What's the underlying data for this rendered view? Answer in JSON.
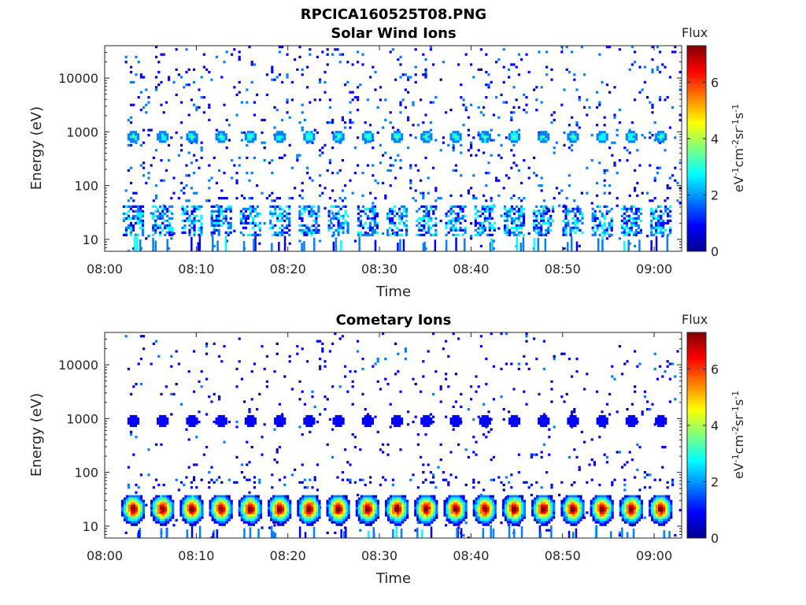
{
  "figure": {
    "filename": "RPCICA160525T08.PNG"
  },
  "colormap": [
    "#00008f",
    "#0000ff",
    "#007fff",
    "#00ffff",
    "#7fff7f",
    "#ffff00",
    "#ff7f00",
    "#ff0000",
    "#7f0000"
  ],
  "chart_data": [
    {
      "type": "heatmap",
      "title": "Solar Wind Ions",
      "xlabel": "Time",
      "ylabel": "Energy (eV)",
      "x_ticks": [
        "08:00",
        "08:10",
        "08:20",
        "08:30",
        "08:40",
        "08:50",
        "09:00"
      ],
      "y_ticks": [
        "10",
        "100",
        "1000",
        "10000"
      ],
      "yscale": "log",
      "ylim": [
        6,
        40000
      ],
      "xlim_minutes": [
        0,
        63
      ],
      "data_start_minute": 2.2,
      "colorbar": {
        "title": "Flux",
        "label": "eV-1cm-2sr-1s-1",
        "ticks": [
          "0",
          "2",
          "4",
          "6"
        ],
        "range": [
          0,
          7.3
        ]
      },
      "sweep_period_minutes": 3.2,
      "features": [
        {
          "energy_ev": 850,
          "flux": 3.0,
          "description": "periodic blob"
        },
        {
          "energy_ev": 25,
          "flux": 2.5,
          "description": "periodic low-energy bands"
        }
      ],
      "background_flux": 1.0
    },
    {
      "type": "heatmap",
      "title": "Cometary Ions",
      "xlabel": "Time",
      "ylabel": "Energy (eV)",
      "x_ticks": [
        "08:00",
        "08:10",
        "08:20",
        "08:30",
        "08:40",
        "08:50",
        "09:00"
      ],
      "y_ticks": [
        "10",
        "100",
        "1000",
        "10000"
      ],
      "yscale": "log",
      "ylim": [
        6,
        40000
      ],
      "xlim_minutes": [
        0,
        63
      ],
      "data_start_minute": 2.2,
      "colorbar": {
        "title": "Flux",
        "label": "eV-1cm-2sr-1s-1",
        "ticks": [
          "0",
          "2",
          "4",
          "6"
        ],
        "range": [
          0,
          7.3
        ]
      },
      "sweep_period_minutes": 3.2,
      "features": [
        {
          "energy_ev": 950,
          "flux": 1.0,
          "description": "periodic blob"
        },
        {
          "energy_ev": 22,
          "flux": 6.0,
          "description": "periodic intense low-energy bands"
        }
      ],
      "background_flux": 0.8
    }
  ]
}
